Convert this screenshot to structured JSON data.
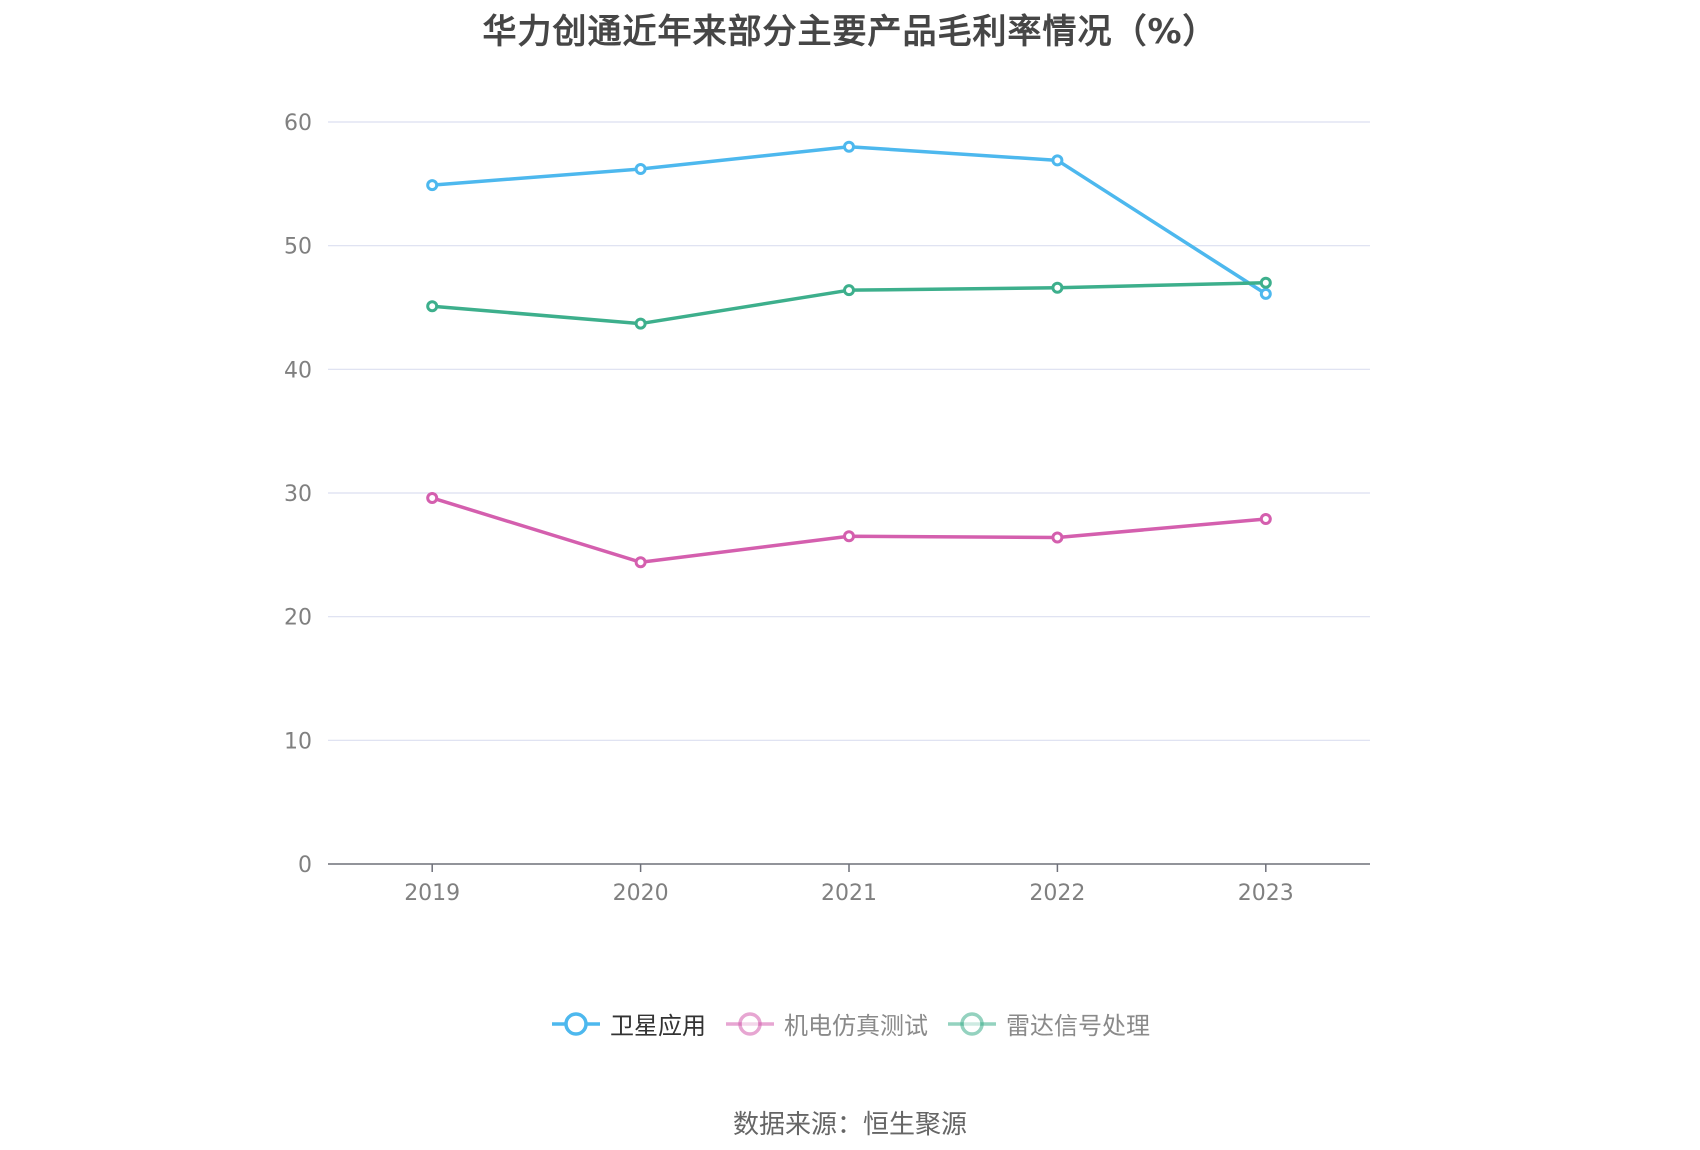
{
  "title": "华力创通近年来部分主要产品毛利率情况（%）",
  "source": "数据来源：恒生聚源",
  "colors": {
    "grid": "#dcdff0",
    "axis": "#6e7079",
    "tick_text": "#808080"
  },
  "chart_data": {
    "type": "line",
    "title": "华力创通近年来部分主要产品毛利率情况（%）",
    "x": [
      "2019",
      "2020",
      "2021",
      "2022",
      "2023"
    ],
    "ylim": [
      0,
      60
    ],
    "yticks": [
      0,
      10,
      20,
      30,
      40,
      50,
      60
    ],
    "grid": true,
    "legend_position": "bottom",
    "series": [
      {
        "name": "卫星应用",
        "color": "#4db8ee",
        "values": [
          54.9,
          56.2,
          58.0,
          56.9,
          46.1
        ],
        "active": true
      },
      {
        "name": "机电仿真测试",
        "color": "#d45fae",
        "values": [
          29.6,
          24.4,
          26.5,
          26.4,
          27.9
        ],
        "active": false
      },
      {
        "name": "雷达信号处理",
        "color": "#3daf8c",
        "values": [
          45.1,
          43.7,
          46.4,
          46.6,
          47.0
        ],
        "active": false
      }
    ]
  }
}
